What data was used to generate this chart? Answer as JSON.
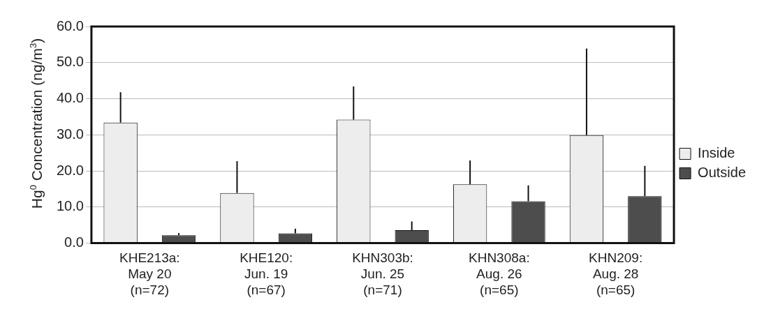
{
  "chart_data": {
    "type": "bar",
    "ylabel": "Hg$^{0}$ Concentration (ng/m$^{3}$)",
    "categories": [
      "KHE213a:\nMay 20\n(n=72)",
      "KHE120:\nJun. 19\n(n=67)",
      "KHN303b:\nJun. 25\n(n=71)",
      "KHN308a:\nAug. 26\n(n=65)",
      "KHN209:\nAug. 28\n(n=65)"
    ],
    "series": [
      {
        "name": "Inside",
        "color": "#ededed",
        "values": [
          33.4,
          13.9,
          34.2,
          16.3,
          29.9
        ],
        "errors": [
          [
            33.4,
            41.8
          ],
          [
            13.9,
            22.7
          ],
          [
            34.2,
            43.4
          ],
          [
            16.3,
            22.9
          ],
          [
            29.9,
            53.9
          ]
        ]
      },
      {
        "name": "Outside",
        "color": "#4d4d4d",
        "values": [
          2.2,
          2.7,
          3.6,
          11.6,
          13.0
        ],
        "errors": [
          [
            2.2,
            2.8
          ],
          [
            2.7,
            4.0
          ],
          [
            3.6,
            6.0
          ],
          [
            11.6,
            16.0
          ],
          [
            13.0,
            21.4
          ]
        ]
      }
    ],
    "ylim": [
      0,
      60
    ],
    "yticks": [
      {
        "value": 0,
        "label": "0.0"
      },
      {
        "value": 10,
        "label": "10.0"
      },
      {
        "value": 20,
        "label": "20.0"
      },
      {
        "value": 30,
        "label": "30.0"
      },
      {
        "value": 40,
        "label": "40.0"
      },
      {
        "value": 50,
        "label": "50.0"
      },
      {
        "value": 60,
        "label": "60.0"
      }
    ],
    "grid": "y",
    "legend": "right"
  }
}
